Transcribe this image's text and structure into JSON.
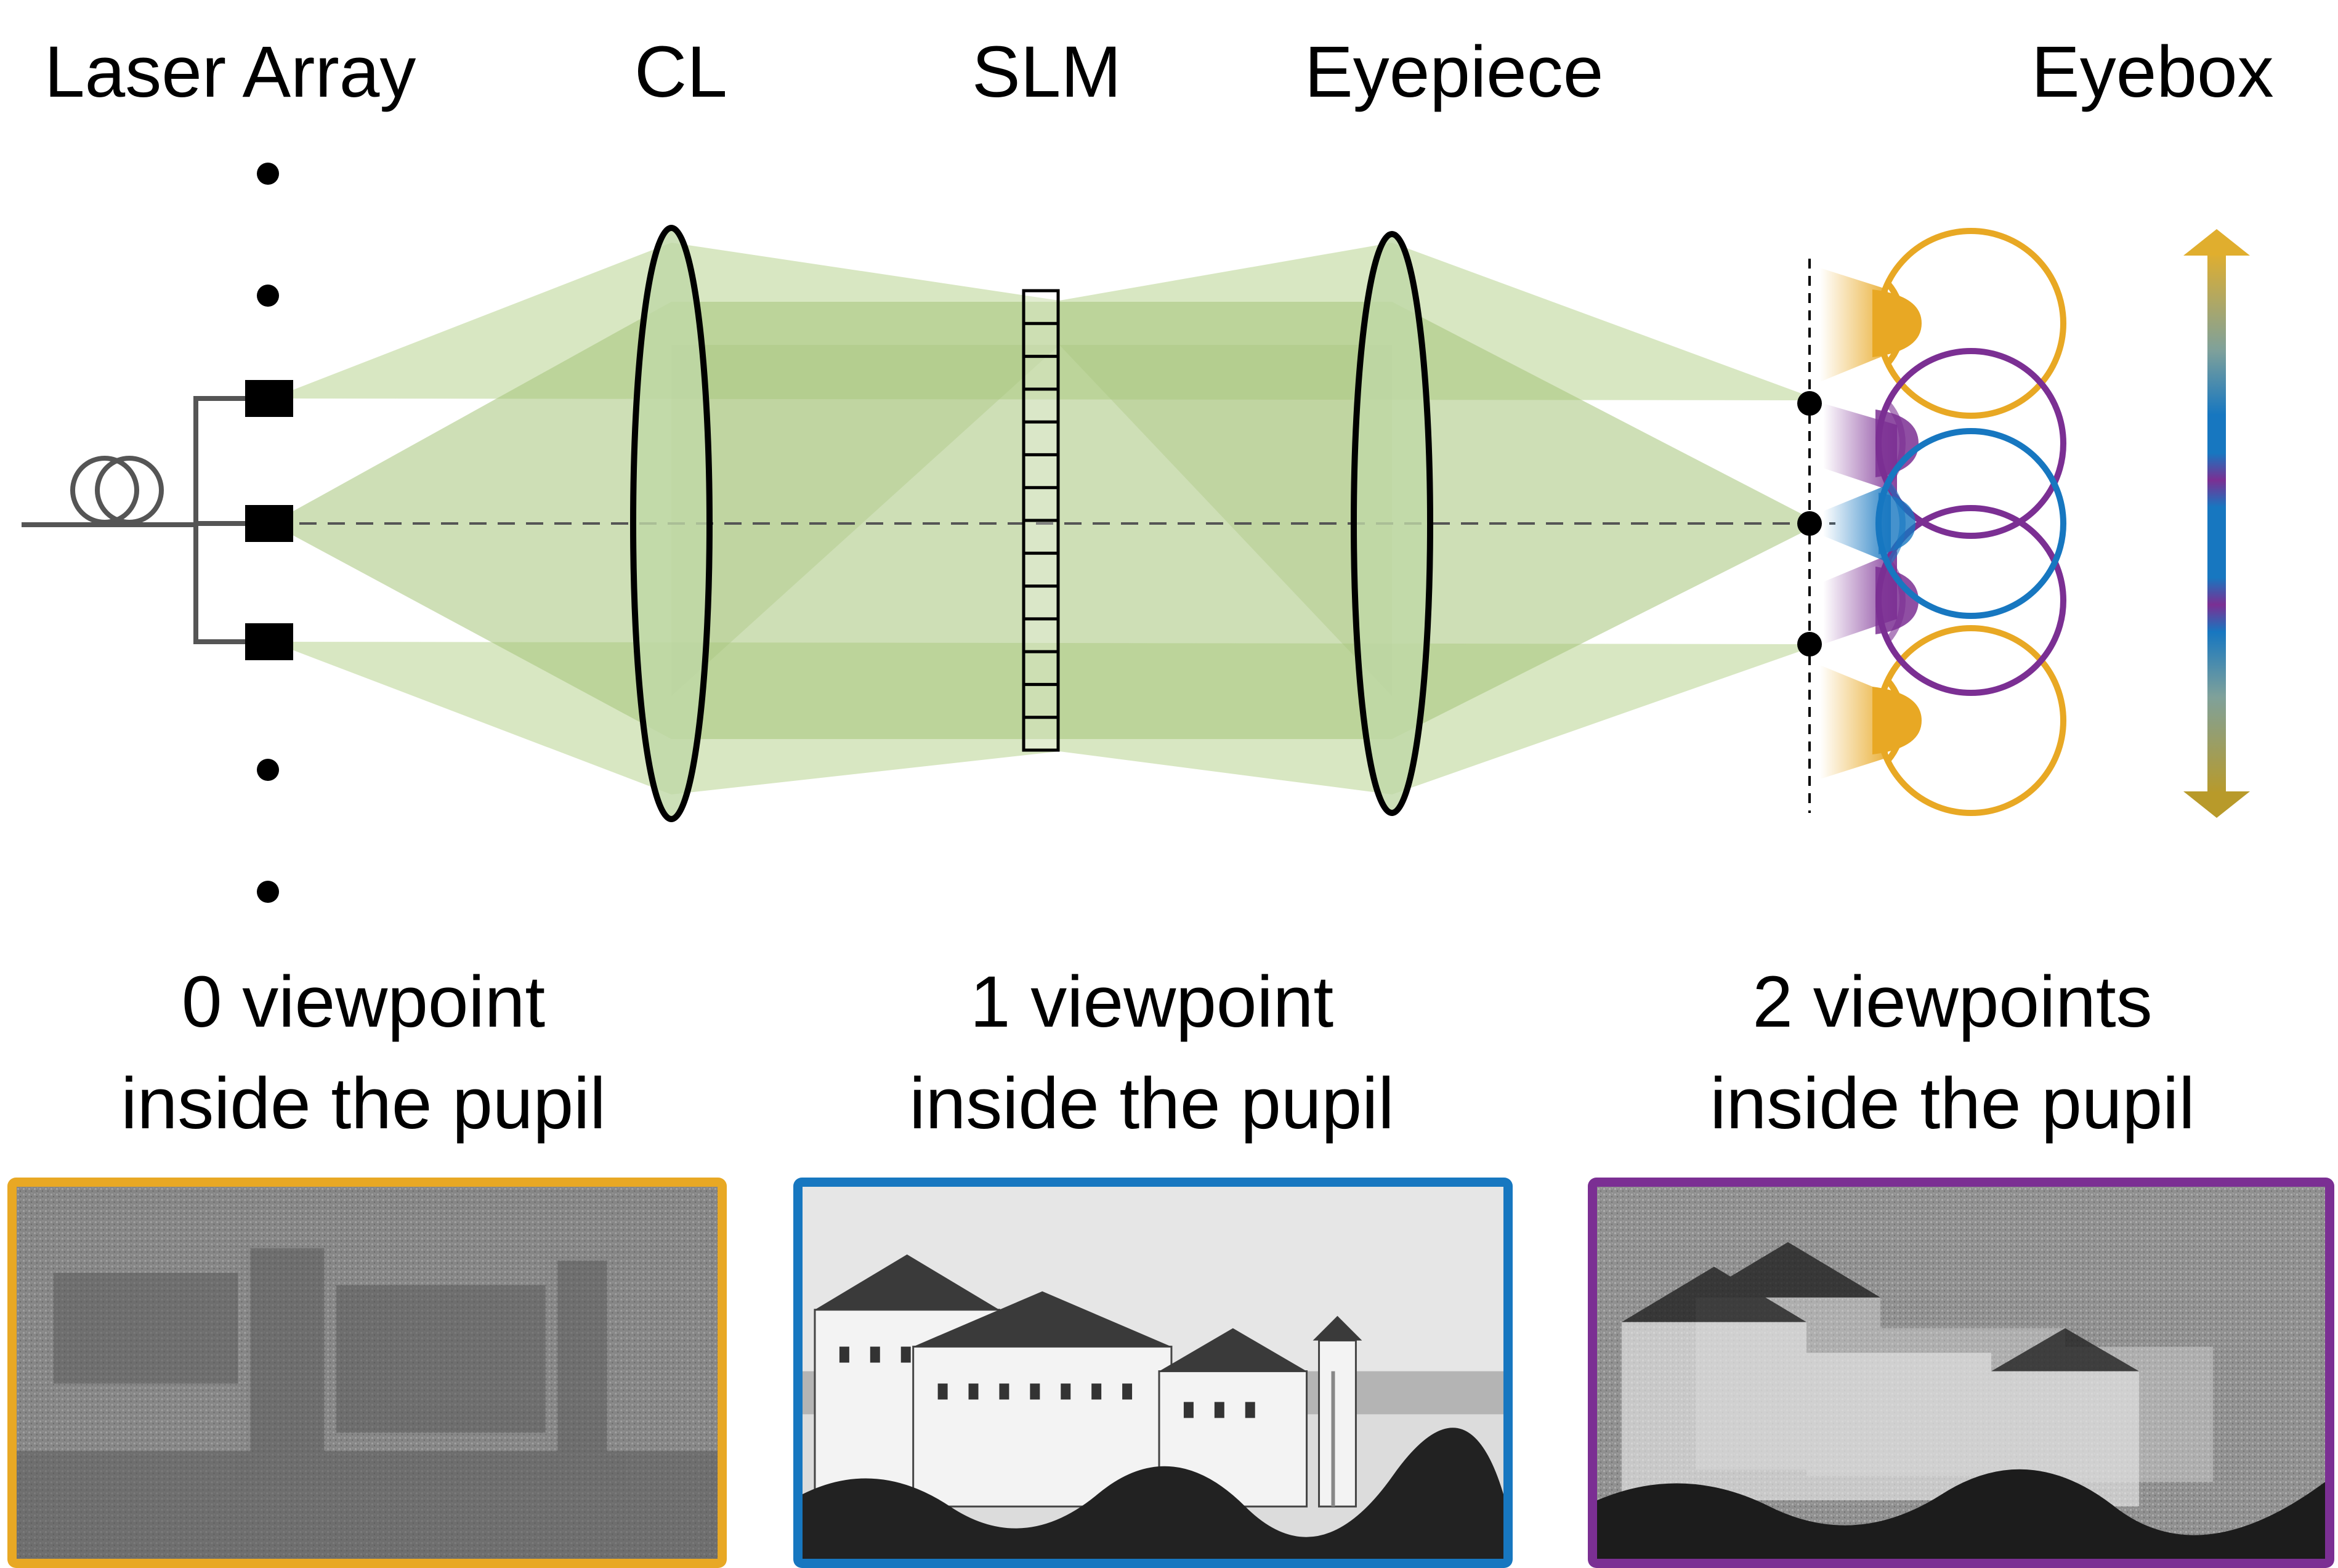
{
  "labels": {
    "laser_array": "Laser Array",
    "cl": "CL",
    "slm": "SLM",
    "eyepiece": "Eyepiece",
    "eyebox": "Eyebox"
  },
  "captions": [
    {
      "line1": "0 viewpoint",
      "line2": "inside the pupil",
      "color": "#E8A824"
    },
    {
      "line1": "1 viewpoint",
      "line2": "inside the pupil",
      "color": "#1777C0"
    },
    {
      "line1": "2 viewpoints",
      "line2": "inside the pupil",
      "color": "#7B2F93"
    }
  ],
  "colors": {
    "beam_light": "#CBDFAE",
    "beam_dark": "#A6C47A",
    "lens_fill": "#BFD8A6",
    "eye_yellow": "#E8A824",
    "eye_blue": "#1777C0",
    "eye_purple": "#7B2F93"
  },
  "icons": [
    "fiber-coil-icon",
    "laser-emitter-icon",
    "lens-icon",
    "slm-grid-icon",
    "eye-icon",
    "double-arrow-icon"
  ]
}
